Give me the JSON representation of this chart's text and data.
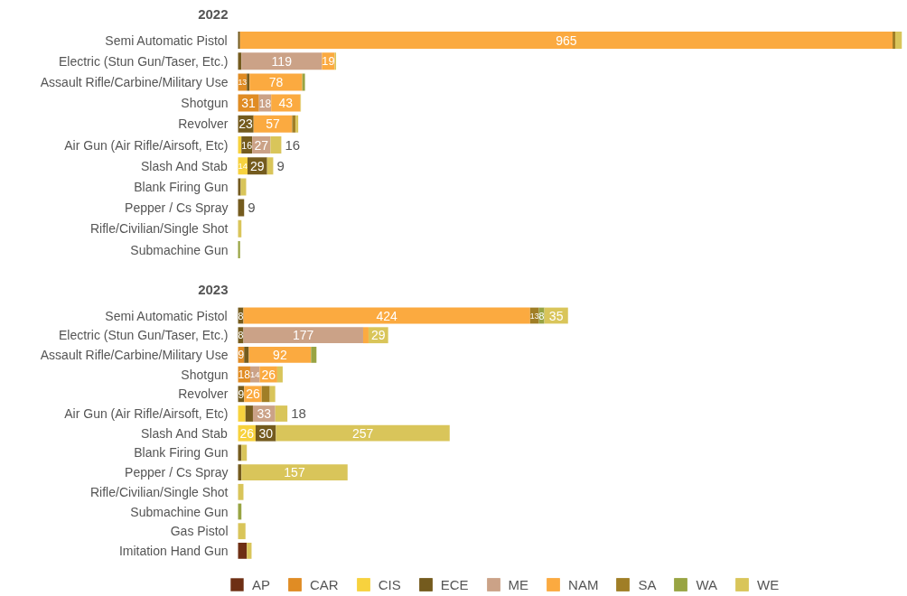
{
  "chart_data": [
    {
      "type": "bar",
      "orientation": "horizontal",
      "stacked": true,
      "title": "2022",
      "legend": "bottom",
      "categories": [
        "Semi Automatic Pistol",
        "Electric (Stun Gun/Taser, Etc.)",
        "Assault Rifle/Carbine/Military Use",
        "Shotgun",
        "Revolver",
        "Air Gun (Air Rifle/Airsoft, Etc)",
        "Slash And Stab",
        "Blank Firing Gun",
        "Pepper / Cs Spray",
        "Rifle/Civilian/Single Shot",
        "Submachine Gun"
      ],
      "series": [
        {
          "name": "AP",
          "color": "#6e2f14",
          "values": [
            null,
            null,
            null,
            null,
            null,
            null,
            null,
            null,
            null,
            null,
            null
          ],
          "value_labels": [
            null,
            null,
            null,
            null,
            null,
            null,
            null,
            null,
            null,
            null,
            null
          ]
        },
        {
          "name": "CAR",
          "color": "#e08c24",
          "values": [
            null,
            null,
            13,
            31,
            null,
            null,
            null,
            null,
            null,
            null,
            null
          ],
          "value_labels": [
            null,
            null,
            "13",
            "31",
            null,
            null,
            null,
            null,
            null,
            null,
            null
          ]
        },
        {
          "name": "CIS",
          "color": "#f7d23e",
          "values": [
            null,
            null,
            null,
            null,
            null,
            5,
            14,
            null,
            null,
            null,
            null
          ],
          "value_labels": [
            null,
            null,
            null,
            null,
            null,
            null,
            "14",
            null,
            null,
            null,
            null
          ]
        },
        {
          "name": "ECE",
          "color": "#745b1e",
          "values": [
            3,
            5,
            4,
            null,
            23,
            16,
            29,
            4,
            9,
            null,
            null
          ],
          "value_labels": [
            null,
            null,
            null,
            null,
            "23",
            "16",
            "29",
            null,
            "9",
            null,
            null
          ]
        },
        {
          "name": "ME",
          "color": "#cba287",
          "values": [
            null,
            119,
            null,
            18,
            null,
            27,
            null,
            null,
            null,
            null,
            null
          ],
          "value_labels": [
            null,
            "119",
            null,
            "18",
            null,
            "27",
            null,
            null,
            null,
            null,
            null
          ]
        },
        {
          "name": "NAM",
          "color": "#fbaa40",
          "values": [
            965,
            19,
            78,
            43,
            57,
            null,
            null,
            null,
            null,
            null,
            null
          ],
          "value_labels": [
            "965",
            "19",
            "78",
            "43",
            "57",
            null,
            null,
            null,
            null,
            null,
            null
          ]
        },
        {
          "name": "SA",
          "color": "#a07e26",
          "values": [
            4,
            null,
            null,
            null,
            5,
            null,
            null,
            null,
            null,
            null,
            null
          ],
          "value_labels": [
            null,
            null,
            null,
            null,
            null,
            null,
            null,
            null,
            null,
            null,
            null
          ]
        },
        {
          "name": "WA",
          "color": "#98a443",
          "values": [
            null,
            null,
            4,
            null,
            null,
            null,
            null,
            null,
            null,
            null,
            3
          ],
          "value_labels": [
            null,
            null,
            null,
            null,
            null,
            null,
            null,
            null,
            null,
            null,
            null
          ]
        },
        {
          "name": "WE",
          "color": "#d9c55a",
          "values": [
            10,
            2,
            null,
            1,
            4,
            16,
            9,
            8,
            null,
            5,
            null
          ],
          "value_labels": [
            null,
            null,
            null,
            null,
            null,
            "16",
            "9",
            null,
            null,
            null,
            null
          ]
        }
      ]
    },
    {
      "type": "bar",
      "orientation": "horizontal",
      "stacked": true,
      "title": "2023",
      "legend": "bottom",
      "categories": [
        "Semi Automatic Pistol",
        "Electric (Stun Gun/Taser, Etc.)",
        "Assault Rifle/Carbine/Military Use",
        "Shotgun",
        "Revolver",
        "Air Gun (Air Rifle/Airsoft, Etc)",
        "Slash And Stab",
        "Blank Firing Gun",
        "Pepper / Cs Spray",
        "Rifle/Civilian/Single Shot",
        "Submachine Gun",
        "Gas Pistol",
        "Imitation Hand Gun"
      ],
      "series": [
        {
          "color": "#6e2f14",
          "values": [
            null,
            null,
            null,
            null,
            null,
            null,
            null,
            null,
            null,
            null,
            null,
            null,
            13
          ],
          "value_labels": [
            null,
            null,
            null,
            null,
            null,
            null,
            null,
            null,
            null,
            null,
            null,
            null,
            null
          ]
        },
        {
          "color": "#e08c24",
          "values": [
            null,
            null,
            9,
            18,
            null,
            null,
            null,
            null,
            null,
            null,
            null,
            null,
            null
          ],
          "value_labels": [
            null,
            null,
            "9",
            "18",
            null,
            null,
            null,
            null,
            null,
            null,
            null,
            null,
            null
          ]
        },
        {
          "color": "#f7d23e",
          "values": [
            null,
            null,
            null,
            null,
            null,
            11,
            26,
            null,
            null,
            null,
            null,
            null,
            null
          ],
          "value_labels": [
            null,
            null,
            null,
            null,
            null,
            null,
            "26",
            null,
            null,
            null,
            null,
            null,
            null
          ]
        },
        {
          "color": "#745b1e",
          "values": [
            8,
            8,
            7,
            null,
            9,
            11,
            30,
            5,
            5,
            null,
            null,
            null,
            null
          ],
          "value_labels": [
            "8",
            "8",
            null,
            null,
            "9",
            null,
            "30",
            null,
            null,
            null,
            null,
            null,
            null
          ]
        },
        {
          "color": "#cba287",
          "values": [
            null,
            177,
            null,
            14,
            null,
            33,
            null,
            null,
            null,
            null,
            null,
            null,
            null
          ],
          "value_labels": [
            null,
            "177",
            null,
            "14",
            null,
            "33",
            null,
            null,
            null,
            null,
            null,
            null,
            null
          ]
        },
        {
          "color": "#fbaa40",
          "values": [
            424,
            8,
            92,
            26,
            26,
            null,
            null,
            null,
            null,
            null,
            null,
            null,
            null
          ],
          "value_labels": [
            "424",
            null,
            "92",
            "26",
            "26",
            null,
            null,
            null,
            null,
            null,
            null,
            null,
            null
          ]
        },
        {
          "color": "#a07e26",
          "values": [
            13,
            null,
            null,
            null,
            12,
            null,
            null,
            null,
            null,
            null,
            null,
            null,
            null
          ],
          "value_labels": [
            "13",
            null,
            null,
            null,
            null,
            null,
            null,
            null,
            null,
            null,
            null,
            null,
            null
          ]
        },
        {
          "color": "#98a443",
          "values": [
            8,
            null,
            8,
            null,
            null,
            null,
            null,
            null,
            null,
            null,
            5,
            null,
            null
          ],
          "value_labels": [
            "8",
            null,
            null,
            null,
            null,
            null,
            null,
            null,
            null,
            null,
            null,
            null,
            null
          ]
        },
        {
          "color": "#d9c55a",
          "values": [
            35,
            29,
            null,
            8,
            8,
            18,
            257,
            8,
            157,
            8,
            null,
            11,
            7
          ],
          "value_labels": [
            "35",
            "29",
            null,
            null,
            null,
            "18",
            "257",
            null,
            "157",
            null,
            null,
            null,
            null
          ]
        }
      ]
    }
  ]
}
